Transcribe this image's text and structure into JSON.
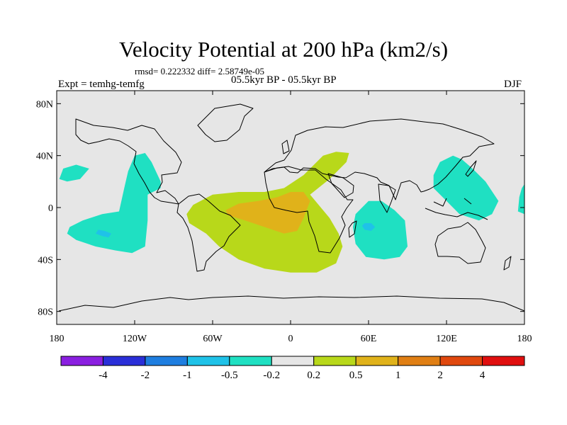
{
  "title": "Velocity Potential at 200 hPa (km2/s)",
  "stats_line": "rmsd= 0.222332  diff= 2.58749e-05",
  "experiment_label": "Expt = temhg-temfg",
  "period_label": "05.5kyr BP - 05.5kyr BP",
  "season_label": "DJF",
  "chart_data": {
    "type": "heatmap",
    "title": "Velocity Potential at 200 hPa (km2/s)",
    "variable": "velocity potential difference",
    "units": "km2/s",
    "xlim": [
      -180,
      180
    ],
    "ylim": [
      -90,
      90
    ],
    "x_ticks": [
      {
        "value": -180,
        "label": "180"
      },
      {
        "value": -120,
        "label": "120W"
      },
      {
        "value": -60,
        "label": "60W"
      },
      {
        "value": 0,
        "label": "0"
      },
      {
        "value": 60,
        "label": "60E"
      },
      {
        "value": 120,
        "label": "120E"
      },
      {
        "value": 180,
        "label": "180"
      }
    ],
    "y_ticks": [
      {
        "value": 80,
        "label": "80N"
      },
      {
        "value": 40,
        "label": "40N"
      },
      {
        "value": 0,
        "label": "0"
      },
      {
        "value": -40,
        "label": "40S"
      },
      {
        "value": -80,
        "label": "80S"
      }
    ],
    "colorbar": {
      "levels": [
        -4,
        -2,
        -1,
        -0.5,
        -0.2,
        0.2,
        0.5,
        1,
        2,
        4
      ],
      "level_labels": [
        "-4",
        "-2",
        "-1",
        "-0.5",
        "-0.2",
        "0.2",
        "0.5",
        "1",
        "2",
        "4"
      ],
      "colors": [
        "#8a1fe0",
        "#2a2fd8",
        "#1e7ee0",
        "#1fc2e8",
        "#1fe0c2",
        "#e6e6e6",
        "#b8d81a",
        "#e0b21a",
        "#e07f14",
        "#e0480e",
        "#e00f0f"
      ]
    },
    "regions": [
      {
        "name": "tropical-atlantic-africa-positive",
        "bin": "0.2 to 0.5",
        "color": "#b8d81a",
        "outline": [
          [
            -80,
            -5
          ],
          [
            -75,
            2
          ],
          [
            -60,
            10
          ],
          [
            -40,
            12
          ],
          [
            -20,
            12
          ],
          [
            -5,
            15
          ],
          [
            10,
            25
          ],
          [
            25,
            40
          ],
          [
            35,
            43
          ],
          [
            45,
            42
          ],
          [
            43,
            35
          ],
          [
            30,
            22
          ],
          [
            15,
            10
          ],
          [
            30,
            -8
          ],
          [
            37,
            -20
          ],
          [
            40,
            -30
          ],
          [
            35,
            -43
          ],
          [
            20,
            -50
          ],
          [
            0,
            -50
          ],
          [
            -20,
            -47
          ],
          [
            -40,
            -40
          ],
          [
            -55,
            -30
          ],
          [
            -65,
            -20
          ],
          [
            -78,
            -12
          ]
        ]
      },
      {
        "name": "central-atlantic-positive",
        "bin": "0.5 to 1",
        "color": "#e0b21a",
        "outline": [
          [
            -50,
            -2
          ],
          [
            -40,
            3
          ],
          [
            -25,
            5
          ],
          [
            -10,
            8
          ],
          [
            0,
            12
          ],
          [
            10,
            12
          ],
          [
            15,
            5
          ],
          [
            10,
            -8
          ],
          [
            5,
            -18
          ],
          [
            -5,
            -20
          ],
          [
            -20,
            -15
          ],
          [
            -35,
            -10
          ],
          [
            -48,
            -6
          ]
        ]
      },
      {
        "name": "central-pacific-negative",
        "bin": "-0.5 to -0.2",
        "color": "#1fe0c2",
        "outline": [
          [
            -170,
            -15
          ],
          [
            -160,
            -10
          ],
          [
            -145,
            -5
          ],
          [
            -132,
            -3
          ],
          [
            -128,
            15
          ],
          [
            -125,
            28
          ],
          [
            -120,
            40
          ],
          [
            -112,
            42
          ],
          [
            -107,
            35
          ],
          [
            -100,
            20
          ],
          [
            -100,
            15
          ],
          [
            -110,
            10
          ],
          [
            -110,
            -10
          ],
          [
            -112,
            -30
          ],
          [
            -122,
            -35
          ],
          [
            -135,
            -33
          ],
          [
            -150,
            -30
          ],
          [
            -165,
            -25
          ],
          [
            -172,
            -20
          ]
        ]
      },
      {
        "name": "pacific-negative-core",
        "bin": "-1 to -0.5",
        "color": "#1fc2e8",
        "outline": [
          [
            -148,
            -17
          ],
          [
            -143,
            -18
          ],
          [
            -138,
            -20
          ],
          [
            -140,
            -23
          ],
          [
            -145,
            -22
          ],
          [
            -150,
            -20
          ]
        ]
      },
      {
        "name": "north-pacific-negative-patch",
        "bin": "-0.5 to -0.2",
        "color": "#1fe0c2",
        "outline": [
          [
            -175,
            30
          ],
          [
            -165,
            33
          ],
          [
            -155,
            30
          ],
          [
            -162,
            22
          ],
          [
            -172,
            20
          ],
          [
            -178,
            22
          ]
        ]
      },
      {
        "name": "indian-ocean-negative",
        "bin": "-0.5 to -0.2",
        "color": "#1fe0c2",
        "outline": [
          [
            50,
            -5
          ],
          [
            60,
            5
          ],
          [
            70,
            5
          ],
          [
            80,
            -2
          ],
          [
            88,
            -10
          ],
          [
            90,
            -30
          ],
          [
            84,
            -38
          ],
          [
            72,
            -40
          ],
          [
            58,
            -38
          ],
          [
            50,
            -28
          ],
          [
            48,
            -15
          ]
        ]
      },
      {
        "name": "indian-ocean-negative-core",
        "bin": "-1 to -0.5",
        "color": "#1fc2e8",
        "outline": [
          [
            57,
            -12
          ],
          [
            62,
            -12
          ],
          [
            65,
            -15
          ],
          [
            62,
            -18
          ],
          [
            57,
            -17
          ],
          [
            55,
            -14
          ]
        ]
      },
      {
        "name": "western-pacific-negative",
        "bin": "-0.5 to -0.2",
        "color": "#1fe0c2",
        "outline": [
          [
            110,
            25
          ],
          [
            115,
            35
          ],
          [
            125,
            40
          ],
          [
            132,
            37
          ],
          [
            140,
            30
          ],
          [
            150,
            20
          ],
          [
            160,
            5
          ],
          [
            155,
            -5
          ],
          [
            145,
            -10
          ],
          [
            130,
            -5
          ],
          [
            120,
            5
          ],
          [
            110,
            15
          ]
        ]
      },
      {
        "name": "dateline-negative-edge",
        "bin": "-0.5 to -0.2",
        "color": "#1fe0c2",
        "outline": [
          [
            178,
            15
          ],
          [
            180,
            18
          ],
          [
            180,
            -5
          ],
          [
            175,
            -3
          ],
          [
            176,
            8
          ]
        ]
      }
    ]
  }
}
